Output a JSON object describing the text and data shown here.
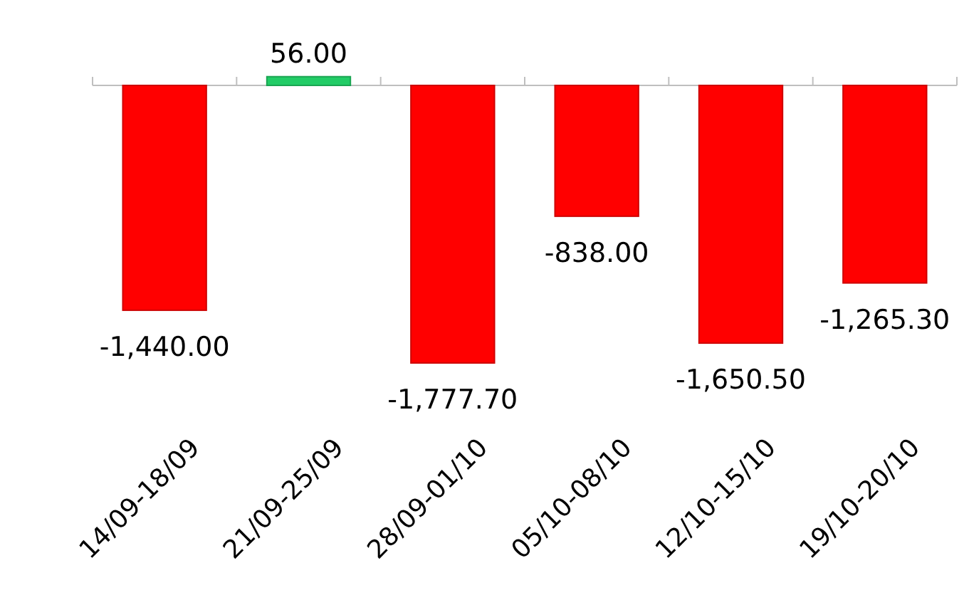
{
  "chart_data": {
    "type": "bar",
    "categories": [
      "14/09-18/09",
      "21/09-25/09",
      "28/09-01/10",
      "05/10-08/10",
      "12/10-15/10",
      "19/10-20/10"
    ],
    "values": [
      -1440.0,
      56.0,
      -1777.7,
      -838.0,
      -1650.5,
      -1265.3
    ],
    "value_labels": [
      "-1,440.00",
      "56.00",
      "-1,777.70",
      "-838.00",
      "-1,650.50",
      "-1,265.30"
    ],
    "colors": [
      "#ff0000",
      "#22cc66",
      "#ff0000",
      "#ff0000",
      "#ff0000",
      "#ff0000"
    ]
  }
}
